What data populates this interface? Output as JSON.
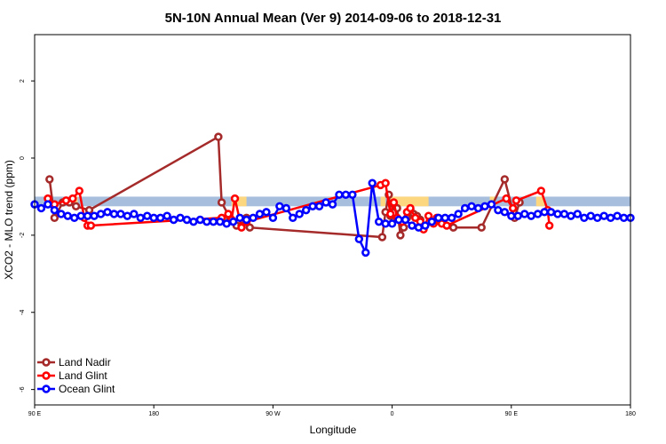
{
  "chart_data": {
    "type": "line",
    "title": "5N-10N Annual Mean (Ver 9)   2014-09-06 to 2018-12-31",
    "xlabel": "Longitude",
    "ylabel": "XCO2 - MLO trend (ppm)",
    "xlim": [
      -180,
      180
    ],
    "ylim": [
      -6.4,
      3.2
    ],
    "x_ticks": [
      {
        "value": -180,
        "label": "90 E"
      },
      {
        "value": -108,
        "label": "180"
      },
      {
        "value": -36,
        "label": "90 W"
      },
      {
        "value": 36,
        "label": "0"
      },
      {
        "value": 108,
        "label": "90 E"
      },
      {
        "value": 180,
        "label": "180"
      }
    ],
    "y_ticks": [
      {
        "value": -6,
        "label": "-6"
      },
      {
        "value": -4,
        "label": "-4"
      },
      {
        "value": -2,
        "label": "-2"
      },
      {
        "value": 0,
        "label": "0"
      },
      {
        "value": 2,
        "label": "2"
      }
    ],
    "band": {
      "y0": -1.25,
      "y1": -1.0,
      "color": "#a7bfdd",
      "land_color": "#fdd77f",
      "land_spans": [
        [
          -156,
          -154
        ],
        [
          -61,
          -52
        ],
        [
          29,
          32
        ],
        [
          34,
          58
        ],
        [
          95,
          98
        ],
        [
          123,
          128
        ]
      ]
    },
    "legend": {
      "position": "bottom-left"
    },
    "series": [
      {
        "name": "Land Nadir",
        "color": "#a52a2a",
        "x": [
          -171,
          -168,
          -163,
          -159,
          -155,
          -147,
          -69,
          -67,
          -62,
          -58,
          -55,
          -52,
          -50,
          30,
          32,
          34,
          35,
          37,
          39,
          41,
          43,
          45,
          47,
          49,
          51,
          53,
          55,
          62,
          73,
          90,
          104,
          110,
          113
        ],
        "y": [
          -0.55,
          -1.55,
          -1.15,
          -1.15,
          -1.25,
          -1.35,
          0.55,
          -1.15,
          -1.55,
          -1.75,
          -1.75,
          -1.55,
          -1.8,
          -2.05,
          -1.4,
          -0.95,
          -1.5,
          -1.2,
          -1.3,
          -2.0,
          -1.8,
          -1.55,
          -1.35,
          -1.45,
          -1.5,
          -1.6,
          -1.8,
          -1.65,
          -1.8,
          -1.8,
          -0.55,
          -1.55,
          -1.15
        ]
      },
      {
        "name": "Land Glint",
        "color": "#ff0000",
        "x": [
          -172,
          -168,
          -161,
          -157,
          -153,
          -150,
          -148,
          -146,
          -67,
          -63,
          -61,
          -59,
          -55,
          -52,
          29,
          32,
          35,
          37,
          39,
          42,
          45,
          47,
          50,
          53,
          55,
          58,
          61,
          63,
          66,
          69,
          105,
          109,
          111,
          126,
          130,
          131
        ],
        "y": [
          -1.05,
          -1.2,
          -1.1,
          -1.05,
          -0.85,
          -1.55,
          -1.75,
          -1.75,
          -1.55,
          -1.45,
          -1.6,
          -1.05,
          -1.8,
          -1.65,
          -0.7,
          -0.65,
          -1.45,
          -1.15,
          -1.55,
          -1.65,
          -1.4,
          -1.3,
          -1.55,
          -1.65,
          -1.85,
          -1.5,
          -1.7,
          -1.55,
          -1.7,
          -1.75,
          -1.05,
          -1.3,
          -1.1,
          -0.85,
          -1.35,
          -1.75
        ]
      },
      {
        "name": "Ocean Glint",
        "color": "#0000ff",
        "x": [
          -180,
          -176,
          -172,
          -168,
          -164,
          -160,
          -156,
          -152,
          -148,
          -144,
          -140,
          -136,
          -132,
          -128,
          -124,
          -120,
          -116,
          -112,
          -108,
          -104,
          -100,
          -96,
          -92,
          -88,
          -84,
          -80,
          -76,
          -72,
          -68,
          -64,
          -60,
          -56,
          -52,
          -48,
          -44,
          -40,
          -36,
          -32,
          -28,
          -24,
          -20,
          -16,
          -12,
          -8,
          -4,
          0,
          4,
          8,
          12,
          16,
          20,
          24,
          28,
          32,
          36,
          40,
          44,
          48,
          52,
          56,
          60,
          64,
          68,
          72,
          76,
          80,
          84,
          88,
          92,
          96,
          100,
          104,
          108,
          112,
          116,
          120,
          124,
          128,
          132,
          136,
          140,
          144,
          148,
          152,
          156,
          160,
          164,
          168,
          172,
          176,
          180
        ],
        "y": [
          -1.2,
          -1.3,
          -1.2,
          -1.35,
          -1.45,
          -1.5,
          -1.55,
          -1.5,
          -1.5,
          -1.5,
          -1.45,
          -1.4,
          -1.45,
          -1.45,
          -1.5,
          -1.45,
          -1.55,
          -1.5,
          -1.55,
          -1.55,
          -1.5,
          -1.6,
          -1.55,
          -1.6,
          -1.65,
          -1.6,
          -1.65,
          -1.65,
          -1.65,
          -1.7,
          -1.65,
          -1.55,
          -1.6,
          -1.55,
          -1.45,
          -1.4,
          -1.55,
          -1.25,
          -1.3,
          -1.55,
          -1.45,
          -1.35,
          -1.25,
          -1.25,
          -1.15,
          -1.2,
          -0.95,
          -0.95,
          -0.95,
          -2.1,
          -2.45,
          -0.65,
          -1.65,
          -1.7,
          -1.7,
          -1.6,
          -1.6,
          -1.75,
          -1.8,
          -1.75,
          -1.65,
          -1.55,
          -1.55,
          -1.55,
          -1.45,
          -1.3,
          -1.25,
          -1.3,
          -1.25,
          -1.2,
          -1.35,
          -1.4,
          -1.5,
          -1.5,
          -1.45,
          -1.5,
          -1.45,
          -1.4,
          -1.4,
          -1.45,
          -1.45,
          -1.5,
          -1.45,
          -1.55,
          -1.5,
          -1.55,
          -1.5,
          -1.55,
          -1.5,
          -1.55,
          -1.55
        ]
      }
    ]
  }
}
